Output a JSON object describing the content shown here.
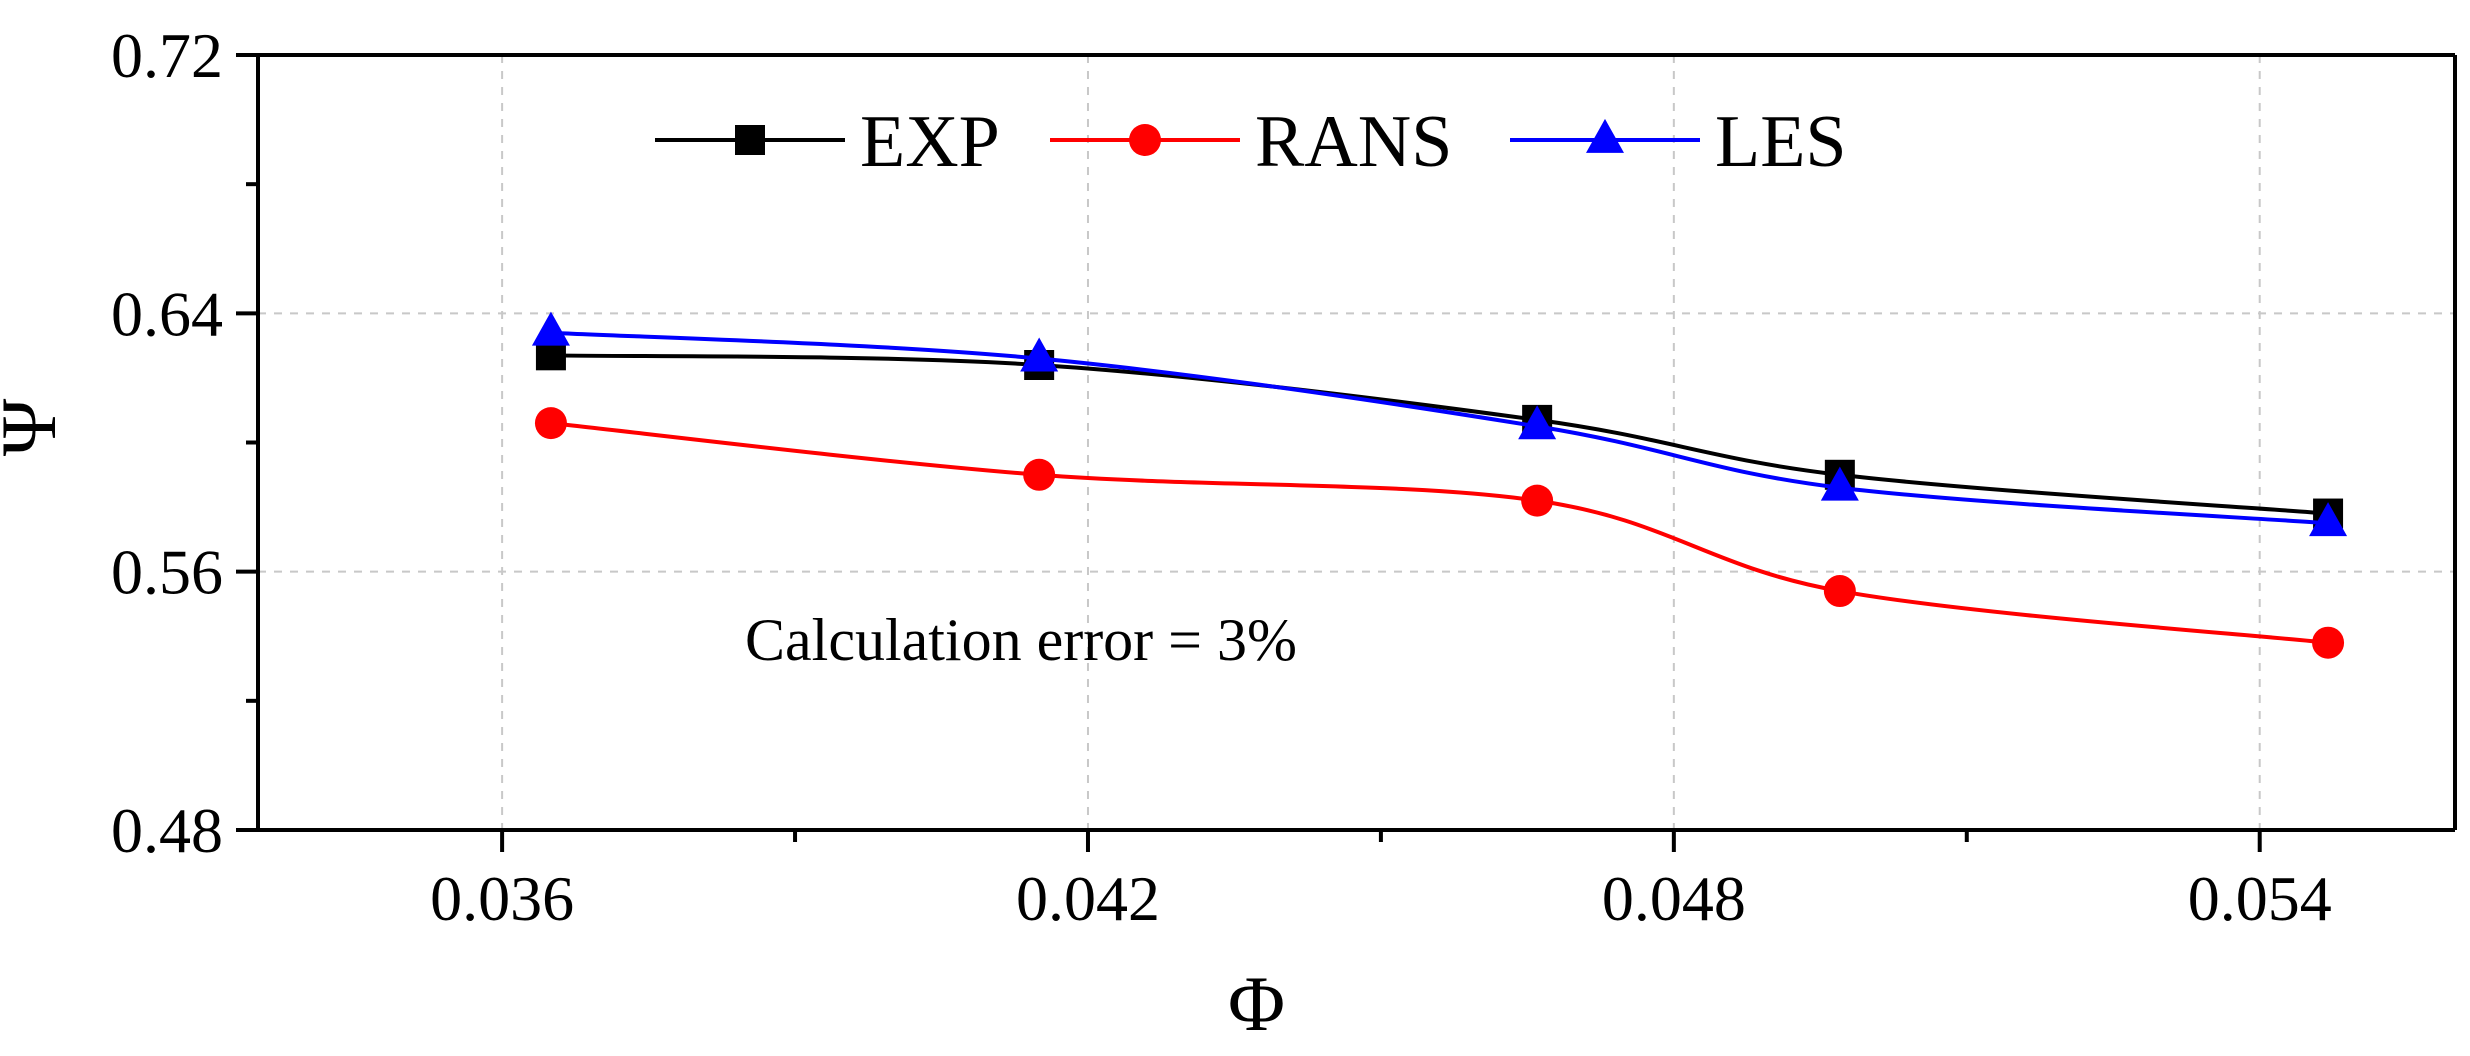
{
  "chart_data": {
    "type": "line",
    "title": "",
    "xlabel": "Φ",
    "ylabel": "Ψ",
    "xlim": [
      0.0335,
      0.056
    ],
    "ylim": [
      0.48,
      0.72
    ],
    "xticks": [
      0.036,
      0.042,
      0.048,
      0.054
    ],
    "xtick_labels": [
      "0.036",
      "0.042",
      "0.048",
      "0.054"
    ],
    "x_minor_ticks": [
      0.039,
      0.045,
      0.051
    ],
    "yticks": [
      0.48,
      0.56,
      0.64,
      0.72
    ],
    "ytick_labels": [
      "0.48",
      "0.56",
      "0.64",
      "0.72"
    ],
    "y_minor_ticks": [
      0.52,
      0.6,
      0.68
    ],
    "grid": true,
    "legend_position": "top-left",
    "annotation": "Calculation error = 3%",
    "series": [
      {
        "name": "EXP",
        "color": "#000000",
        "marker": "square",
        "x": [
          0.0365,
          0.0415,
          0.0466,
          0.0497,
          0.0547
        ],
        "y": [
          0.627,
          0.624,
          0.607,
          0.59,
          0.578
        ]
      },
      {
        "name": "RANS",
        "color": "#ff0000",
        "marker": "circle",
        "x": [
          0.0365,
          0.0415,
          0.0466,
          0.0497,
          0.0547
        ],
        "y": [
          0.606,
          0.59,
          0.582,
          0.554,
          0.538
        ]
      },
      {
        "name": "LES",
        "color": "#0000ff",
        "marker": "triangle",
        "x": [
          0.0365,
          0.0415,
          0.0466,
          0.0497,
          0.0547
        ],
        "y": [
          0.634,
          0.626,
          0.605,
          0.586,
          0.575
        ]
      }
    ]
  }
}
